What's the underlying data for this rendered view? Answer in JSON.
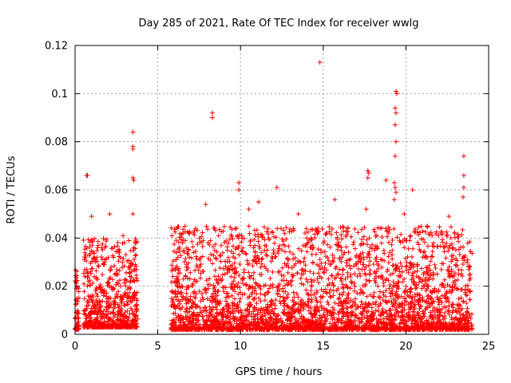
{
  "chart_data": {
    "type": "scatter",
    "title": "Day 285 of 2021, Rate Of TEC Index for receiver wwlg",
    "xlabel": "GPS time / hours",
    "ylabel": "ROTI / TECUs",
    "xlim": [
      0,
      25
    ],
    "ylim": [
      0,
      0.12
    ],
    "xticks": [
      0,
      5,
      10,
      15,
      20,
      25
    ],
    "xtick_labels": [
      "0",
      "5",
      "10",
      "15",
      "20",
      "25"
    ],
    "yticks": [
      0,
      0.02,
      0.04,
      0.06,
      0.08,
      0.1,
      0.12
    ],
    "ytick_labels": [
      "0",
      "0.02",
      "0.04",
      "0.06",
      "0.08",
      "0.1",
      "0.12"
    ],
    "grid": true,
    "marker": "+",
    "color": "#ff0000",
    "series": [
      {
        "name": "ROTI",
        "bulk_segments": [
          {
            "x_start": 0.0,
            "x_end": 0.25,
            "y_min": 0.002,
            "y_max": 0.027,
            "count": 60
          },
          {
            "x_start": 0.5,
            "x_end": 3.8,
            "y_min": 0.003,
            "y_max": 0.04,
            "count": 700
          },
          {
            "x_start": 5.8,
            "x_end": 24.0,
            "y_min": 0.002,
            "y_max": 0.045,
            "count": 3400
          }
        ],
        "points": [
          {
            "x": 0.7,
            "y": 0.066
          },
          {
            "x": 0.75,
            "y": 0.066
          },
          {
            "x": 3.5,
            "y": 0.084
          },
          {
            "x": 3.5,
            "y": 0.078
          },
          {
            "x": 3.5,
            "y": 0.077
          },
          {
            "x": 3.5,
            "y": 0.065
          },
          {
            "x": 3.55,
            "y": 0.064
          },
          {
            "x": 3.5,
            "y": 0.05
          },
          {
            "x": 1.0,
            "y": 0.049
          },
          {
            "x": 2.1,
            "y": 0.05
          },
          {
            "x": 2.9,
            "y": 0.041
          },
          {
            "x": 8.3,
            "y": 0.092
          },
          {
            "x": 8.3,
            "y": 0.09
          },
          {
            "x": 7.9,
            "y": 0.054
          },
          {
            "x": 9.9,
            "y": 0.063
          },
          {
            "x": 9.9,
            "y": 0.06
          },
          {
            "x": 10.5,
            "y": 0.052
          },
          {
            "x": 11.1,
            "y": 0.055
          },
          {
            "x": 12.2,
            "y": 0.061
          },
          {
            "x": 13.5,
            "y": 0.05
          },
          {
            "x": 14.8,
            "y": 0.113
          },
          {
            "x": 15.7,
            "y": 0.056
          },
          {
            "x": 17.7,
            "y": 0.068
          },
          {
            "x": 17.75,
            "y": 0.067
          },
          {
            "x": 17.7,
            "y": 0.065
          },
          {
            "x": 17.6,
            "y": 0.052
          },
          {
            "x": 19.4,
            "y": 0.101
          },
          {
            "x": 19.45,
            "y": 0.1
          },
          {
            "x": 19.35,
            "y": 0.094
          },
          {
            "x": 19.4,
            "y": 0.092
          },
          {
            "x": 19.35,
            "y": 0.087
          },
          {
            "x": 19.4,
            "y": 0.08
          },
          {
            "x": 19.35,
            "y": 0.074
          },
          {
            "x": 19.3,
            "y": 0.063
          },
          {
            "x": 19.35,
            "y": 0.061
          },
          {
            "x": 19.4,
            "y": 0.059
          },
          {
            "x": 19.3,
            "y": 0.056
          },
          {
            "x": 18.8,
            "y": 0.064
          },
          {
            "x": 20.4,
            "y": 0.06
          },
          {
            "x": 19.9,
            "y": 0.05
          },
          {
            "x": 21.3,
            "y": 0.045
          },
          {
            "x": 23.5,
            "y": 0.074
          },
          {
            "x": 23.5,
            "y": 0.066
          },
          {
            "x": 23.5,
            "y": 0.061
          },
          {
            "x": 23.45,
            "y": 0.057
          },
          {
            "x": 22.6,
            "y": 0.049
          }
        ]
      }
    ]
  }
}
